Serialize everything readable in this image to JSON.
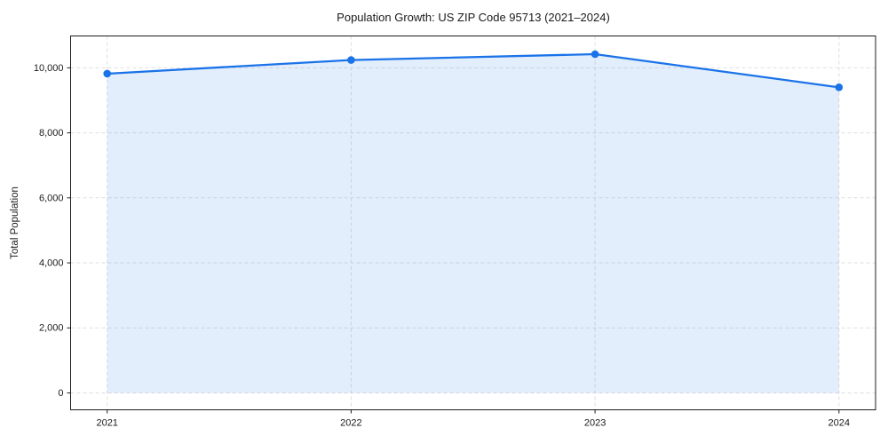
{
  "chart_data": {
    "type": "area",
    "title": "Population Growth: US ZIP Code 95713 (2021–2024)",
    "xlabel": "",
    "ylabel": "Total Population",
    "series": [
      {
        "name": "Total Population",
        "x": [
          2021,
          2022,
          2023,
          2024
        ],
        "values": [
          9820,
          10240,
          10420,
          9400
        ]
      }
    ],
    "x_tick_labels": [
      "2021",
      "2022",
      "2023",
      "2024"
    ],
    "y_ticks": [
      0,
      2000,
      4000,
      6000,
      8000,
      10000
    ],
    "y_tick_labels": [
      "0",
      "2,000",
      "4,000",
      "6,000",
      "8,000",
      "10,000"
    ],
    "xlim": [
      2020.85,
      2024.15
    ],
    "ylim": [
      -520,
      10980
    ],
    "fill_baseline": 0,
    "grid": "on",
    "grid_style": "dashed",
    "legend": "none",
    "colors": {
      "line": "#1a73e8",
      "marker": "#1a73e8",
      "fill": "rgba(26,115,232,0.12)",
      "grid": "#d9d9d9",
      "spine": "#1c1c1c",
      "tick": "#1c1c1c",
      "text": "#1a1a1a",
      "background": "#ffffff"
    }
  }
}
